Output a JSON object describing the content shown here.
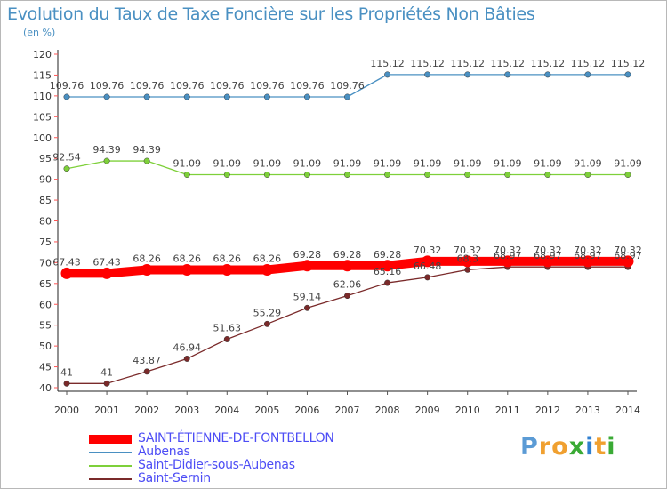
{
  "header": {
    "title": "Evolution du Taux de Taxe Foncière sur les Propriétés Non Bâties",
    "subtitle": "(en %)"
  },
  "logo": {
    "text": "Proxiti",
    "colors": [
      "#5b9bd5",
      "#f0a030",
      "#f0a030",
      "#3aaa35",
      "#2f7fd0",
      "#f0a030",
      "#3aaa35"
    ]
  },
  "chart_data": {
    "type": "line",
    "x": [
      2000,
      2001,
      2002,
      2003,
      2004,
      2005,
      2006,
      2007,
      2008,
      2009,
      2010,
      2011,
      2012,
      2013,
      2014
    ],
    "x_tick_labels": [
      "2000",
      "2001",
      "2002",
      "2003",
      "2004",
      "2005",
      "2006",
      "2007",
      "2008",
      "2009",
      "2010",
      "2011",
      "2012",
      "2013",
      "2014"
    ],
    "ylim": [
      40,
      120
    ],
    "y_ticks": [
      40,
      45,
      50,
      55,
      60,
      65,
      70,
      75,
      80,
      85,
      90,
      95,
      100,
      105,
      110,
      115,
      120
    ],
    "y_tick_labels": [
      "40",
      "45",
      "50",
      "55",
      "60",
      "65",
      "70",
      "75",
      "80",
      "85",
      "90",
      "95",
      "100",
      "105",
      "110",
      "115",
      "120"
    ],
    "grid": false,
    "legend_position": "bottom-left",
    "series": [
      {
        "name": "SAINT-ÉTIENNE-DE-FONTBELLON",
        "color": "#ff0000",
        "values": [
          67.43,
          67.43,
          68.26,
          68.26,
          68.26,
          68.26,
          69.28,
          69.28,
          69.28,
          70.32,
          70.32,
          70.32,
          70.32,
          70.32,
          70.32
        ],
        "labels": [
          "67.43",
          "67.43",
          "68.26",
          "68.26",
          "68.26",
          "68.26",
          "69.28",
          "69.28",
          "69.28",
          "70.32",
          "70.32",
          "70.32",
          "70.32",
          "70.32",
          "70.32"
        ]
      },
      {
        "name": "Aubenas",
        "color": "#4a90c2",
        "values": [
          109.76,
          109.76,
          109.76,
          109.76,
          109.76,
          109.76,
          109.76,
          109.76,
          115.12,
          115.12,
          115.12,
          115.12,
          115.12,
          115.12,
          115.12
        ],
        "labels": [
          "109.76",
          "109.76",
          "109.76",
          "109.76",
          "109.76",
          "109.76",
          "109.76",
          "109.76",
          "115.12",
          "115.12",
          "115.12",
          "115.12",
          "115.12",
          "115.12",
          "115.12"
        ]
      },
      {
        "name": "Saint-Didier-sous-Aubenas",
        "color": "#7ed03a",
        "values": [
          92.54,
          94.39,
          94.39,
          91.09,
          91.09,
          91.09,
          91.09,
          91.09,
          91.09,
          91.09,
          91.09,
          91.09,
          91.09,
          91.09,
          91.09
        ],
        "labels": [
          "92.54",
          "94.39",
          "94.39",
          "91.09",
          "91.09",
          "91.09",
          "91.09",
          "91.09",
          "91.09",
          "91.09",
          "91.09",
          "91.09",
          "91.09",
          "91.09",
          "91.09"
        ]
      },
      {
        "name": "Saint-Sernin",
        "color": "#7a2a2a",
        "values": [
          41,
          41,
          43.87,
          46.94,
          51.63,
          55.29,
          59.14,
          62.06,
          65.16,
          66.48,
          68.3,
          68.97,
          68.97,
          68.97,
          68.97
        ],
        "labels": [
          "41",
          "41",
          "43.87",
          "46.94",
          "51.63",
          "55.29",
          "59.14",
          "62.06",
          "65.16",
          "66.48",
          "68.3",
          "68.97",
          "68.97",
          "68.97",
          "68.97"
        ]
      }
    ]
  }
}
